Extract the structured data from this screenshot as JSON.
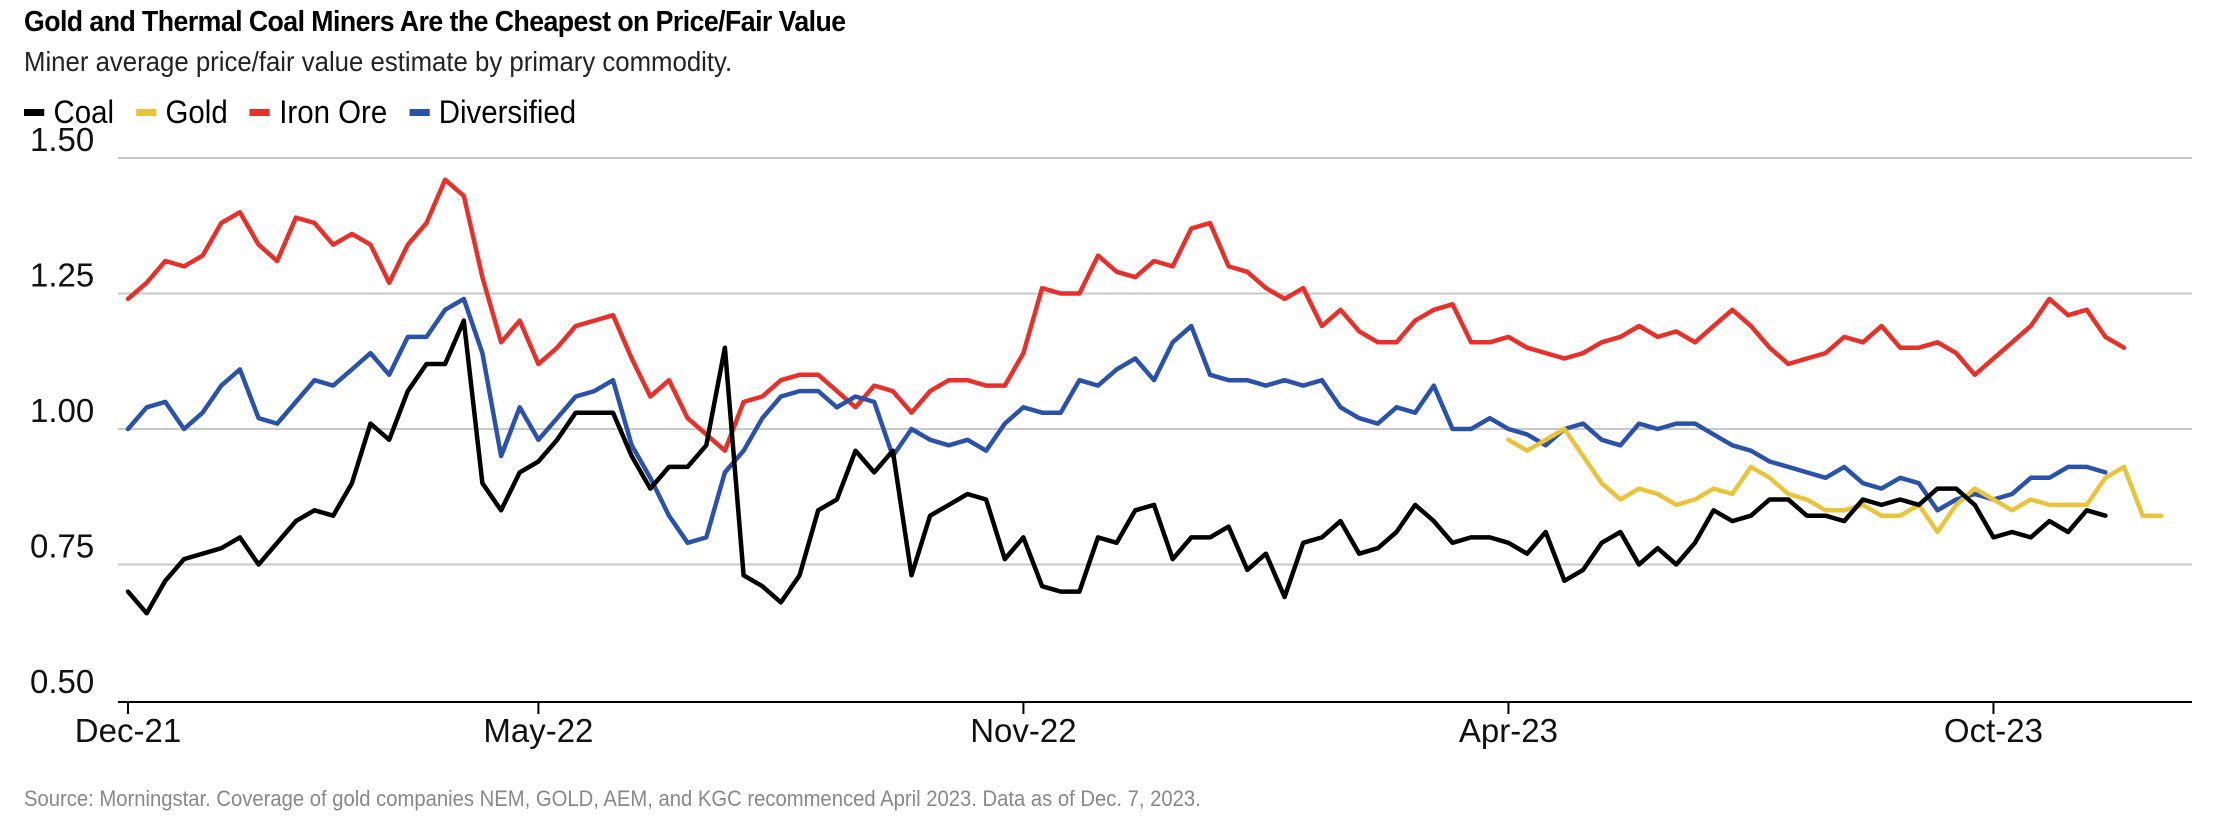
{
  "title": "Gold and Thermal Coal Miners Are the Cheapest on Price/Fair Value",
  "subtitle": "Miner average price/fair value estimate by primary commodity.",
  "source": "Source: Morningstar. Coverage of gold companies NEM, GOLD, AEM, and KGC recommenced April 2023. Data as of Dec. 7, 2023.",
  "legend": [
    {
      "name": "Coal",
      "color": "#000000"
    },
    {
      "name": "Gold",
      "color": "#e8c43c"
    },
    {
      "name": "Iron Ore",
      "color": "#e8302a"
    },
    {
      "name": "Diversified",
      "color": "#2a52a8"
    }
  ],
  "chart_data": {
    "type": "line",
    "ylim": [
      0.5,
      1.5
    ],
    "yticks": [
      0.5,
      0.75,
      1.0,
      1.25,
      1.5
    ],
    "ytick_labels": [
      "0.50",
      "0.75",
      "1.00",
      "1.25",
      "1.50"
    ],
    "xticks": [
      {
        "label": "Dec-21",
        "index": 0
      },
      {
        "label": "May-22",
        "index": 22
      },
      {
        "label": "Nov-22",
        "index": 48
      },
      {
        "label": "Apr-23",
        "index": 74
      },
      {
        "label": "Oct-23",
        "index": 100
      }
    ],
    "n_points": 111,
    "grid": true,
    "legend_position": "top-left",
    "series": [
      {
        "name": "Coal",
        "color": "#000000",
        "start_index": 0,
        "values": [
          0.7,
          0.66,
          0.72,
          0.76,
          0.77,
          0.78,
          0.8,
          0.75,
          0.79,
          0.83,
          0.85,
          0.84,
          0.9,
          1.01,
          0.98,
          1.07,
          1.12,
          1.12,
          1.2,
          0.9,
          0.85,
          0.92,
          0.94,
          0.98,
          1.03,
          1.03,
          1.03,
          0.95,
          0.89,
          0.93,
          0.93,
          0.97,
          1.15,
          0.73,
          0.71,
          0.68,
          0.73,
          0.85,
          0.87,
          0.96,
          0.92,
          0.96,
          0.73,
          0.84,
          0.86,
          0.88,
          0.87,
          0.76,
          0.8,
          0.71,
          0.7,
          0.7,
          0.8,
          0.79,
          0.85,
          0.86,
          0.76,
          0.8,
          0.8,
          0.82,
          0.74,
          0.77,
          0.69,
          0.79,
          0.8,
          0.83,
          0.77,
          0.78,
          0.81,
          0.86,
          0.83,
          0.79,
          0.8,
          0.8,
          0.79,
          0.77,
          0.81,
          0.72,
          0.74,
          0.79,
          0.81,
          0.75,
          0.78,
          0.75,
          0.79,
          0.85,
          0.83,
          0.84,
          0.87,
          0.87,
          0.84,
          0.84,
          0.83,
          0.87,
          0.86,
          0.87,
          0.86,
          0.89,
          0.89,
          0.86,
          0.8,
          0.81,
          0.8,
          0.83,
          0.81,
          0.85,
          0.84
        ],
        "comment": ""
      },
      {
        "name": "Gold",
        "color": "#e8c43c",
        "start_index": 74,
        "values": [
          0.98,
          0.96,
          0.98,
          1.0,
          0.95,
          0.9,
          0.87,
          0.89,
          0.88,
          0.86,
          0.87,
          0.89,
          0.88,
          0.93,
          0.91,
          0.88,
          0.87,
          0.85,
          0.85,
          0.86,
          0.84,
          0.84,
          0.86,
          0.81,
          0.86,
          0.89,
          0.87,
          0.85,
          0.87,
          0.86,
          0.86,
          0.86,
          0.91,
          0.93,
          0.84,
          0.84
        ]
      },
      {
        "name": "Iron Ore",
        "color": "#e8302a",
        "start_index": 0,
        "values": [
          1.24,
          1.27,
          1.31,
          1.3,
          1.32,
          1.38,
          1.4,
          1.34,
          1.31,
          1.39,
          1.38,
          1.34,
          1.36,
          1.34,
          1.27,
          1.34,
          1.38,
          1.46,
          1.43,
          1.28,
          1.16,
          1.2,
          1.12,
          1.15,
          1.19,
          1.2,
          1.21,
          1.13,
          1.06,
          1.09,
          1.02,
          0.99,
          0.96,
          1.05,
          1.06,
          1.09,
          1.1,
          1.1,
          1.07,
          1.04,
          1.08,
          1.07,
          1.03,
          1.07,
          1.09,
          1.09,
          1.08,
          1.08,
          1.14,
          1.26,
          1.25,
          1.25,
          1.32,
          1.29,
          1.28,
          1.31,
          1.3,
          1.37,
          1.38,
          1.3,
          1.29,
          1.26,
          1.24,
          1.26,
          1.19,
          1.22,
          1.18,
          1.16,
          1.16,
          1.2,
          1.22,
          1.23,
          1.16,
          1.16,
          1.17,
          1.15,
          1.14,
          1.13,
          1.14,
          1.16,
          1.17,
          1.19,
          1.17,
          1.18,
          1.16,
          1.19,
          1.22,
          1.19,
          1.15,
          1.12,
          1.13,
          1.14,
          1.17,
          1.16,
          1.19,
          1.15,
          1.15,
          1.16,
          1.14,
          1.1,
          1.13,
          1.16,
          1.19,
          1.24,
          1.21,
          1.22,
          1.17,
          1.15
        ],
        "comment": ""
      },
      {
        "name": "Diversified",
        "color": "#2a52a8",
        "start_index": 0,
        "values": [
          1.0,
          1.04,
          1.05,
          1.0,
          1.03,
          1.08,
          1.11,
          1.02,
          1.01,
          1.05,
          1.09,
          1.08,
          1.11,
          1.14,
          1.1,
          1.17,
          1.17,
          1.22,
          1.24,
          1.14,
          0.95,
          1.04,
          0.98,
          1.02,
          1.06,
          1.07,
          1.09,
          0.97,
          0.91,
          0.84,
          0.79,
          0.8,
          0.92,
          0.96,
          1.02,
          1.06,
          1.07,
          1.07,
          1.04,
          1.06,
          1.05,
          0.95,
          1.0,
          0.98,
          0.97,
          0.98,
          0.96,
          1.01,
          1.04,
          1.03,
          1.03,
          1.09,
          1.08,
          1.11,
          1.13,
          1.09,
          1.16,
          1.19,
          1.1,
          1.09,
          1.09,
          1.08,
          1.09,
          1.08,
          1.09,
          1.04,
          1.02,
          1.01,
          1.04,
          1.03,
          1.08,
          1.0,
          1.0,
          1.02,
          1.0,
          0.99,
          0.97,
          1.0,
          1.01,
          0.98,
          0.97,
          1.01,
          1.0,
          1.01,
          1.01,
          0.99,
          0.97,
          0.96,
          0.94,
          0.93,
          0.92,
          0.91,
          0.93,
          0.9,
          0.89,
          0.91,
          0.9,
          0.85,
          0.87,
          0.88,
          0.87,
          0.88,
          0.91,
          0.91,
          0.93,
          0.93,
          0.92
        ],
        "comment": ""
      }
    ]
  }
}
